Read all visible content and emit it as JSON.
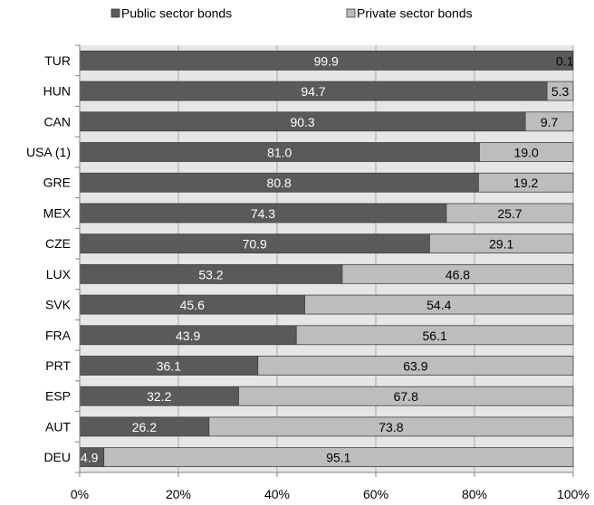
{
  "chart_data": {
    "type": "bar",
    "orientation": "horizontal",
    "stacked": "percent",
    "title": "",
    "xlabel": "",
    "ylabel": "",
    "categories": [
      "TUR",
      "HUN",
      "CAN",
      "USA (1)",
      "GRE",
      "MEX",
      "CZE",
      "LUX",
      "SVK",
      "FRA",
      "PRT",
      "ESP",
      "AUT",
      "DEU"
    ],
    "series": [
      {
        "name": "Public sector bonds",
        "color": "#5a5a5a",
        "values": [
          99.9,
          94.7,
          90.3,
          81.0,
          80.8,
          74.3,
          70.9,
          53.2,
          45.6,
          43.9,
          36.1,
          32.2,
          26.2,
          4.9
        ],
        "labels": [
          "99.9",
          "94.7",
          "90.3",
          "81.0",
          "80.8",
          "74.3",
          "70.9",
          "53.2",
          "45.6",
          "43.9",
          "36.1",
          "32.2",
          "26.2",
          "4.9"
        ]
      },
      {
        "name": "Private sector bonds",
        "color": "#bdbdbd",
        "values": [
          0.1,
          5.3,
          9.7,
          19.0,
          19.2,
          25.7,
          29.1,
          46.8,
          54.4,
          56.1,
          63.9,
          67.8,
          73.8,
          95.1
        ],
        "labels": [
          "0.1",
          "5.3",
          "9.7",
          "19.0",
          "19.2",
          "25.7",
          "29.1",
          "46.8",
          "54.4",
          "56.1",
          "63.9",
          "67.8",
          "73.8",
          "95.1"
        ]
      }
    ],
    "xlim": [
      0,
      100
    ],
    "xticks": [
      0,
      20,
      40,
      60,
      80,
      100
    ],
    "xtick_labels": [
      "0%",
      "20%",
      "40%",
      "60%",
      "80%",
      "100%"
    ],
    "grid": true,
    "legend": "top"
  }
}
